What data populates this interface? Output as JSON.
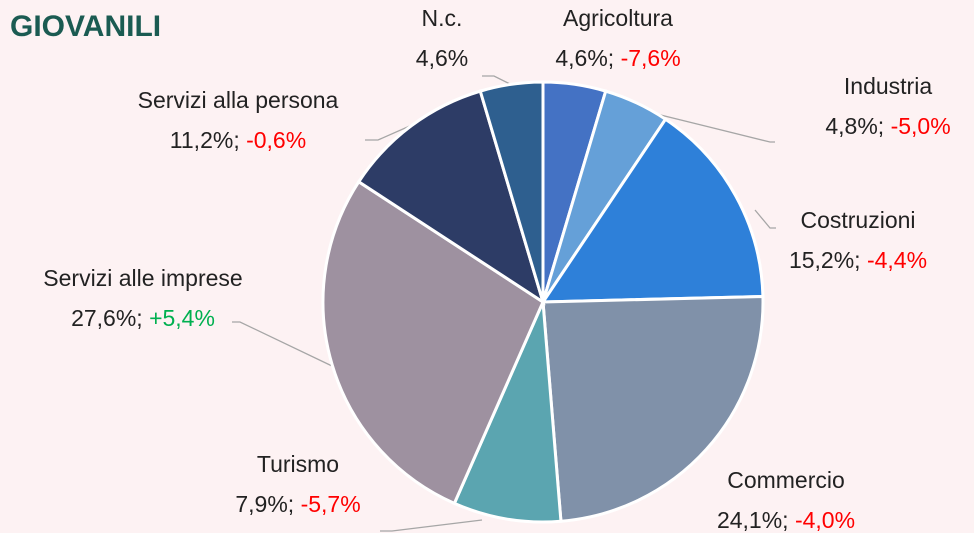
{
  "chart_data": {
    "type": "pie",
    "title": "GIOVANILI",
    "categories": [
      "Agricoltura",
      "Industria",
      "Costruzioni",
      "Commercio",
      "Turismo",
      "Servizi alle imprese",
      "Servizi alla persona",
      "N.c."
    ],
    "values": [
      4.6,
      4.8,
      15.2,
      24.1,
      7.9,
      27.6,
      11.2,
      4.6
    ],
    "value_labels": [
      "4,6%",
      "4,8%",
      "15,2%",
      "24,1%",
      "7,9%",
      "27,6%",
      "11,2%",
      "4,6%"
    ],
    "changes": [
      -7.6,
      -5.0,
      -4.4,
      -4.0,
      -5.7,
      5.4,
      -0.6,
      null
    ],
    "change_labels": [
      "-7,6%",
      "-5,0%",
      "-4,4%",
      "-4,0%",
      "-5,7%",
      "+5,4%",
      "-0,6%",
      null
    ],
    "label_separator": "; ",
    "colors": [
      "#4472c4",
      "#65a0d8",
      "#2e80d9",
      "#8091a9",
      "#5ba5b0",
      "#9e91a0",
      "#2d3c66",
      "#2e5f8f"
    ],
    "negative_color": "#ff0000",
    "positive_color": "#00b050"
  }
}
